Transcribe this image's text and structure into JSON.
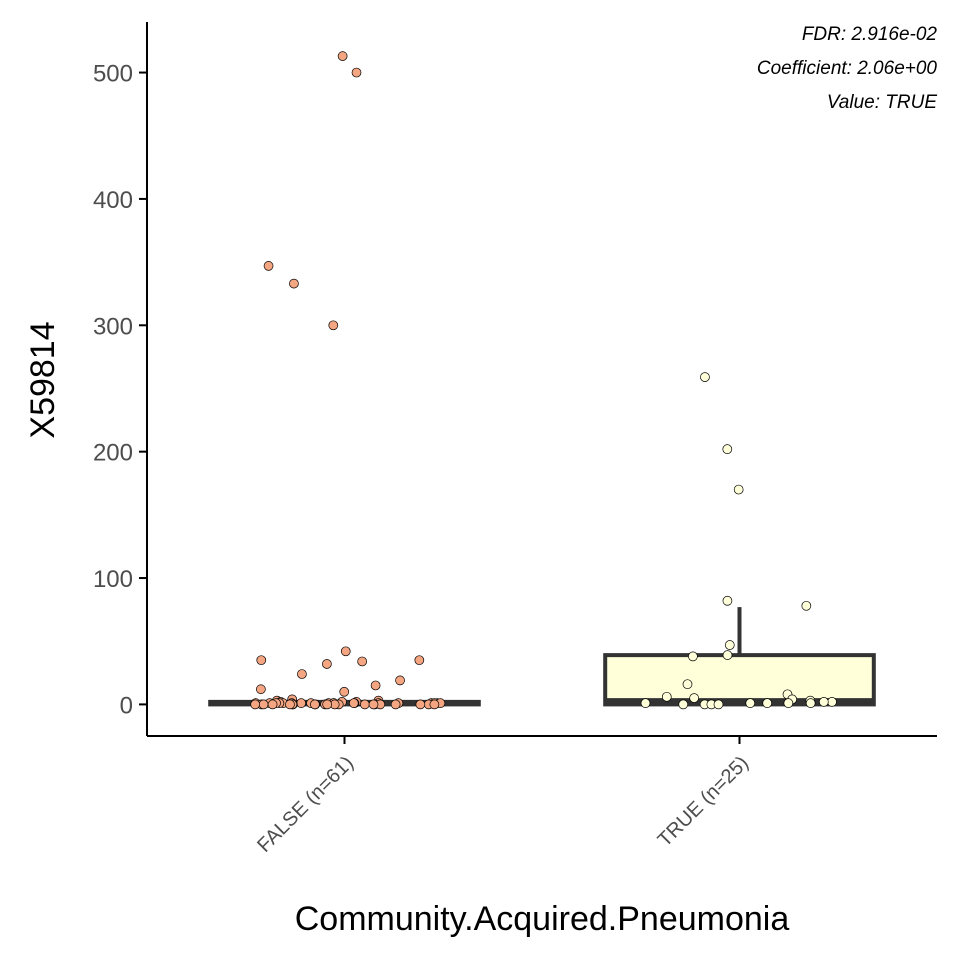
{
  "chart_data": {
    "type": "box",
    "title": "",
    "xlabel": "Community.Acquired.Pneumonia",
    "ylabel": "X59814",
    "ylim": [
      -25,
      540
    ],
    "yticks": [
      0,
      100,
      200,
      300,
      400,
      500
    ],
    "categories": [
      "FALSE (n=61)",
      "TRUE (n=25)"
    ],
    "colors": [
      "#f4a582",
      "#ffffd9"
    ],
    "boxes": [
      {
        "category": "FALSE (n=61)",
        "min": 0,
        "q1": 0,
        "median": 1,
        "q3": 2,
        "max": 4
      },
      {
        "category": "TRUE (n=25)",
        "min": 0,
        "q1": 0,
        "median": 3,
        "q3": 39,
        "max": 77
      }
    ],
    "points": [
      {
        "category": "FALSE (n=61)",
        "values": [
          513,
          500,
          347,
          333,
          300,
          42,
          35,
          35,
          34,
          32,
          24,
          19,
          15,
          12,
          10,
          4,
          3,
          3,
          2,
          2,
          2,
          1,
          1,
          1,
          1,
          1,
          1,
          1,
          1,
          1,
          1,
          1,
          1,
          1,
          1,
          1,
          1,
          1,
          1,
          1,
          0,
          0,
          0,
          0,
          0,
          0,
          0,
          0,
          0,
          0,
          0,
          0,
          0,
          0,
          0,
          0,
          0,
          0,
          0,
          0,
          0
        ]
      },
      {
        "category": "TRUE (n=25)",
        "values": [
          259,
          202,
          170,
          82,
          78,
          47,
          39,
          38,
          16,
          8,
          6,
          5,
          4,
          3,
          2,
          2,
          1,
          1,
          1,
          1,
          1,
          0,
          0,
          0,
          0
        ]
      }
    ],
    "annotations": [
      "FDR: 2.916e-02",
      "Coefficient: 2.06e+00",
      "Value: TRUE"
    ],
    "grid": false,
    "legend": "none"
  }
}
